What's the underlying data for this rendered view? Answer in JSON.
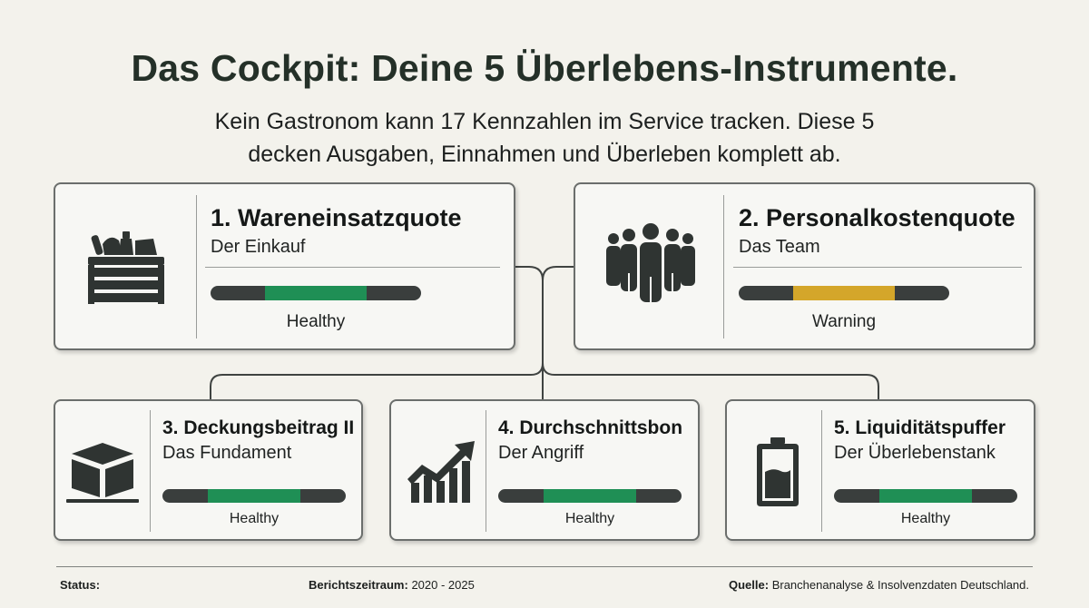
{
  "header": {
    "title": "Das Cockpit: Deine 5 Überlebens-Instrumente.",
    "subtitle": "Kein Gastronom kann 17 Kennzahlen im Service tracken. Diese 5 decken Ausgaben, Einnahmen und Überleben komplett ab."
  },
  "colors": {
    "healthy": "#1f8f55",
    "warning": "#d4a62a",
    "dark_segment": "#3a3e3d",
    "title": "#243028"
  },
  "cards": [
    {
      "name": "1. Wareneinsatzquote",
      "sub": "Der Einkauf",
      "status": "Healthy",
      "icon": "crate-icon",
      "status_color": "#1f8f55"
    },
    {
      "name": "2. Personalkostenquote",
      "sub": "Das Team",
      "status": "Warning",
      "icon": "team-icon",
      "status_color": "#d4a62a"
    },
    {
      "name": "3. Deckungsbeitrag II",
      "sub": "Das Fundament",
      "status": "Healthy",
      "icon": "cube-icon",
      "status_color": "#1f8f55"
    },
    {
      "name": "4. Durchschnittsbon",
      "sub": "Der Angriff",
      "status": "Healthy",
      "icon": "trend-chart-icon",
      "status_color": "#1f8f55"
    },
    {
      "name": "5. Liquiditätspuffer",
      "sub": "Der Überlebenstank",
      "status": "Healthy",
      "icon": "battery-icon",
      "status_color": "#1f8f55"
    }
  ],
  "footer": {
    "status_label": "Status:",
    "period_label": "Berichtszeitraum:",
    "period_value": "2020 - 2025",
    "source_label": "Quelle:",
    "source_value": "Branchenanalyse & Insolvenzdaten Deutschland."
  }
}
